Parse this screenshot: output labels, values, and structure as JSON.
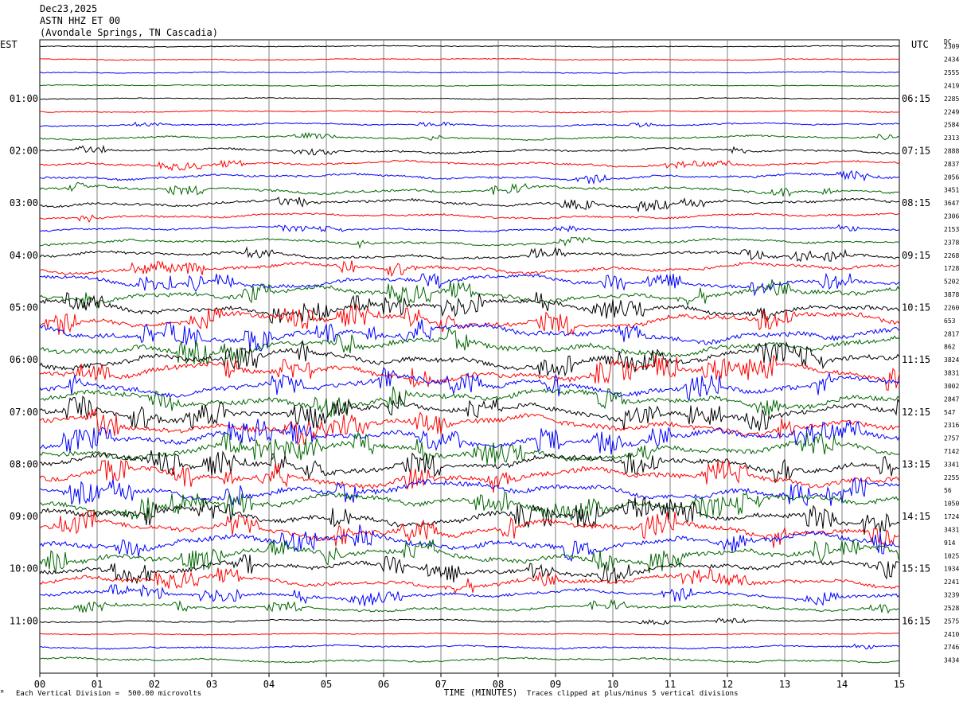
{
  "header": {
    "date": "Dec23,2025",
    "station": "ASTN HHZ ET 00",
    "location": "(Avondale Springs, TN Cascadia)"
  },
  "left_zone": "EST",
  "right_zone": "UTC",
  "dc_header": "DC",
  "footer": {
    "scale_note": "Each Vertical Division =  500.00 microvolts",
    "clip_note": "Traces clipped at plus/minus 5 vertical divisions",
    "mark": "ᴹ"
  },
  "colors": {
    "black": "#000000",
    "red": "#ff0000",
    "blue": "#0000ff",
    "green": "#006600",
    "grid": "#808080"
  },
  "chart_data": {
    "type": "line",
    "title": "ASTN HHZ ET 00",
    "xlabel": "TIME (MINUTES)",
    "ylabel": "",
    "x_ticks": [
      "00",
      "01",
      "02",
      "03",
      "04",
      "05",
      "06",
      "07",
      "08",
      "09",
      "10",
      "11",
      "12",
      "13",
      "14",
      "15"
    ],
    "xlim": [
      0,
      15
    ],
    "left_hour_labels": [
      "01:00",
      "02:00",
      "03:00",
      "04:00",
      "05:00",
      "06:00",
      "07:00",
      "08:00",
      "09:00",
      "10:00",
      "11:00"
    ],
    "right_hour_labels": [
      "06:15",
      "07:15",
      "08:15",
      "09:15",
      "10:15",
      "11:15",
      "12:15",
      "13:15",
      "14:15",
      "15:15",
      "16:15"
    ],
    "trace_color_cycle": [
      "black",
      "red",
      "blue",
      "green"
    ],
    "trace_dc_offsets": [
      2309,
      2434,
      2555,
      2419,
      2285,
      2249,
      2584,
      2313,
      2888,
      2837,
      2056,
      3451,
      3647,
      2306,
      2153,
      2378,
      2268,
      1728,
      5202,
      3878,
      2260,
      653,
      2817,
      862,
      3824,
      3831,
      3002,
      2847,
      547,
      2316,
      2757,
      7142,
      3341,
      2255,
      56,
      1050,
      1724,
      3431,
      914,
      1025,
      1934,
      2241,
      3239,
      2528,
      2575,
      2410,
      2746,
      3434
    ],
    "trace_activity": [
      0.12,
      0.18,
      0.14,
      0.12,
      0.15,
      0.2,
      0.35,
      0.45,
      0.55,
      0.6,
      0.7,
      0.8,
      0.85,
      0.6,
      0.5,
      0.7,
      0.9,
      1.1,
      1.4,
      1.6,
      1.7,
      1.8,
      1.9,
      2.0,
      2.0,
      2.0,
      2.0,
      2.0,
      2.0,
      2.0,
      2.0,
      2.0,
      2.0,
      2.0,
      2.0,
      2.0,
      2.0,
      2.0,
      2.0,
      1.9,
      1.7,
      1.4,
      1.1,
      0.8,
      0.35,
      0.15,
      0.4,
      0.5
    ],
    "vertical_division_microvolts": 500.0,
    "clip_divisions": 5
  }
}
